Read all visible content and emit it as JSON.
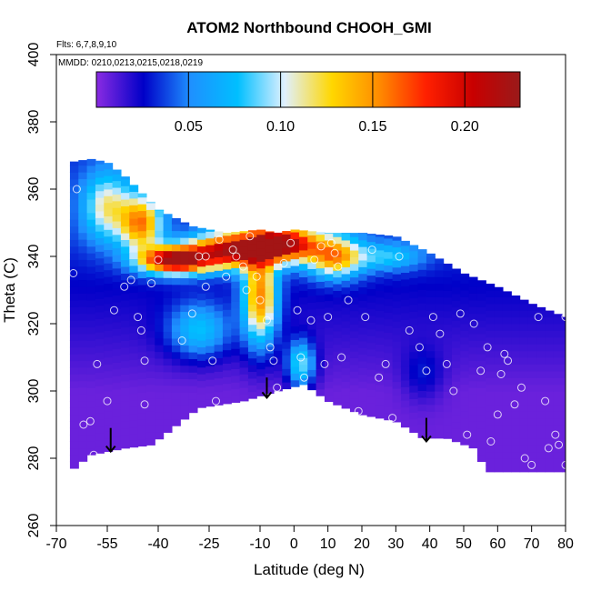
{
  "chart_data": {
    "type": "heatmap",
    "title": "ATOM2 Northbound CHOOH_GMI",
    "notes": [
      "Flts: 6,7,8,9,10",
      "MMDD: 0210,0213,0215,0218,0219"
    ],
    "xlabel": "Latitude (deg N)",
    "ylabel": "Theta (C)",
    "xlim": [
      -70,
      80
    ],
    "ylim": [
      260,
      400
    ],
    "xticks": [
      -70,
      -55,
      -40,
      -25,
      -10,
      0,
      10,
      20,
      30,
      40,
      50,
      60,
      70,
      80
    ],
    "yticks": [
      260,
      280,
      300,
      320,
      340,
      360,
      380,
      400
    ],
    "colorbar": {
      "range": [
        0.0,
        0.23
      ],
      "ticks": [
        0.05,
        0.1,
        0.15,
        0.2
      ],
      "tick_labels": [
        "0.05",
        "0.10",
        "0.15",
        "0.20"
      ],
      "colors": [
        "#8a2be2",
        "#0000c8",
        "#1e90ff",
        "#00bfff",
        "#e0f0ff",
        "#ffd700",
        "#ff8c00",
        "#ff2000",
        "#c80000",
        "#9a1a1a"
      ]
    },
    "domain_top": [
      [
        -66,
        368
      ],
      [
        -60,
        369
      ],
      [
        -55,
        368
      ],
      [
        -50,
        364
      ],
      [
        -45,
        359
      ],
      [
        -40,
        354
      ],
      [
        -30,
        349
      ],
      [
        -20,
        347
      ],
      [
        -10,
        348
      ],
      [
        -5,
        347
      ],
      [
        0,
        348
      ],
      [
        10,
        347
      ],
      [
        20,
        347
      ],
      [
        30,
        346
      ],
      [
        40,
        341
      ],
      [
        50,
        335
      ],
      [
        60,
        331
      ],
      [
        70,
        326
      ],
      [
        80,
        322
      ]
    ],
    "domain_bottom": [
      [
        -66,
        276
      ],
      [
        -60,
        281
      ],
      [
        -50,
        283
      ],
      [
        -42,
        284
      ],
      [
        -28,
        295
      ],
      [
        -15,
        297
      ],
      [
        -5,
        300
      ],
      [
        3,
        302
      ],
      [
        10,
        297
      ],
      [
        20,
        293
      ],
      [
        30,
        291
      ],
      [
        38,
        286
      ],
      [
        45,
        286
      ],
      [
        53,
        283
      ],
      [
        57,
        276
      ],
      [
        80,
        276
      ]
    ],
    "hotspots": [
      {
        "lat": -35,
        "theta": 339,
        "value": 0.2,
        "dlat": 10,
        "dtheta": 4
      },
      {
        "lat": -18,
        "theta": 342,
        "value": 0.18,
        "dlat": 12,
        "dtheta": 5
      },
      {
        "lat": -3,
        "theta": 344,
        "value": 0.18,
        "dlat": 10,
        "dtheta": 5
      },
      {
        "lat": -10,
        "theta": 328,
        "value": 0.13,
        "dlat": 5,
        "dtheta": 14
      },
      {
        "lat": -45,
        "theta": 350,
        "value": 0.12,
        "dlat": 6,
        "dtheta": 8
      },
      {
        "lat": -55,
        "theta": 355,
        "value": 0.08,
        "dlat": 7,
        "dtheta": 10
      },
      {
        "lat": 12,
        "theta": 340,
        "value": 0.12,
        "dlat": 8,
        "dtheta": 6
      },
      {
        "lat": 2,
        "theta": 308,
        "value": 0.08,
        "dlat": 4,
        "dtheta": 7
      },
      {
        "lat": -28,
        "theta": 318,
        "value": 0.06,
        "dlat": 9,
        "dtheta": 8
      },
      {
        "lat": 28,
        "theta": 340,
        "value": 0.05,
        "dlat": 10,
        "dtheta": 4
      },
      {
        "lat": 38,
        "theta": 305,
        "value": 0.02,
        "dlat": 6,
        "dtheta": 8
      }
    ],
    "observations": [
      [
        -65,
        335
      ],
      [
        -64,
        360
      ],
      [
        -62,
        290
      ],
      [
        -60,
        291
      ],
      [
        -59,
        281
      ],
      [
        -58,
        308
      ],
      [
        -55,
        297
      ],
      [
        -53,
        324
      ],
      [
        -50,
        331
      ],
      [
        -48,
        333
      ],
      [
        -46,
        322
      ],
      [
        -45,
        318
      ],
      [
        -44,
        309
      ],
      [
        -44,
        296
      ],
      [
        -42,
        332
      ],
      [
        -40,
        339
      ],
      [
        -33,
        315
      ],
      [
        -30,
        323
      ],
      [
        -28,
        340
      ],
      [
        -26,
        331
      ],
      [
        -26,
        340
      ],
      [
        -24,
        309
      ],
      [
        -23,
        297
      ],
      [
        -22,
        345
      ],
      [
        -20,
        334
      ],
      [
        -18,
        342
      ],
      [
        -17,
        340
      ],
      [
        -15,
        337
      ],
      [
        -14,
        330
      ],
      [
        -13,
        346
      ],
      [
        -11,
        334
      ],
      [
        -10,
        327
      ],
      [
        -8,
        321
      ],
      [
        -7,
        313
      ],
      [
        -6,
        309
      ],
      [
        -5,
        301
      ],
      [
        -3,
        338
      ],
      [
        -1,
        344
      ],
      [
        1,
        324
      ],
      [
        2,
        310
      ],
      [
        3,
        304
      ],
      [
        5,
        321
      ],
      [
        6,
        339
      ],
      [
        8,
        343
      ],
      [
        9,
        308
      ],
      [
        10,
        322
      ],
      [
        11,
        344
      ],
      [
        12,
        341
      ],
      [
        13,
        337
      ],
      [
        14,
        310
      ],
      [
        16,
        327
      ],
      [
        19,
        294
      ],
      [
        21,
        322
      ],
      [
        23,
        342
      ],
      [
        25,
        304
      ],
      [
        27,
        308
      ],
      [
        29,
        292
      ],
      [
        31,
        340
      ],
      [
        34,
        318
      ],
      [
        37,
        313
      ],
      [
        39,
        306
      ],
      [
        41,
        322
      ],
      [
        43,
        317
      ],
      [
        45,
        308
      ],
      [
        47,
        300
      ],
      [
        49,
        323
      ],
      [
        51,
        287
      ],
      [
        53,
        320
      ],
      [
        55,
        306
      ],
      [
        57,
        313
      ],
      [
        58,
        285
      ],
      [
        60,
        293
      ],
      [
        61,
        305
      ],
      [
        62,
        311
      ],
      [
        63,
        309
      ],
      [
        65,
        296
      ],
      [
        67,
        301
      ],
      [
        68,
        280
      ],
      [
        70,
        278
      ],
      [
        72,
        322
      ],
      [
        74,
        297
      ],
      [
        75,
        283
      ],
      [
        77,
        287
      ],
      [
        78,
        284
      ],
      [
        80,
        322
      ],
      [
        80,
        278
      ]
    ],
    "arrows": [
      {
        "lat": -54,
        "theta_from": 289,
        "theta_to": 282
      },
      {
        "lat": -8,
        "theta_from": 304,
        "theta_to": 298
      },
      {
        "lat": 39,
        "theta_from": 292,
        "theta_to": 285
      }
    ],
    "grid": false
  }
}
